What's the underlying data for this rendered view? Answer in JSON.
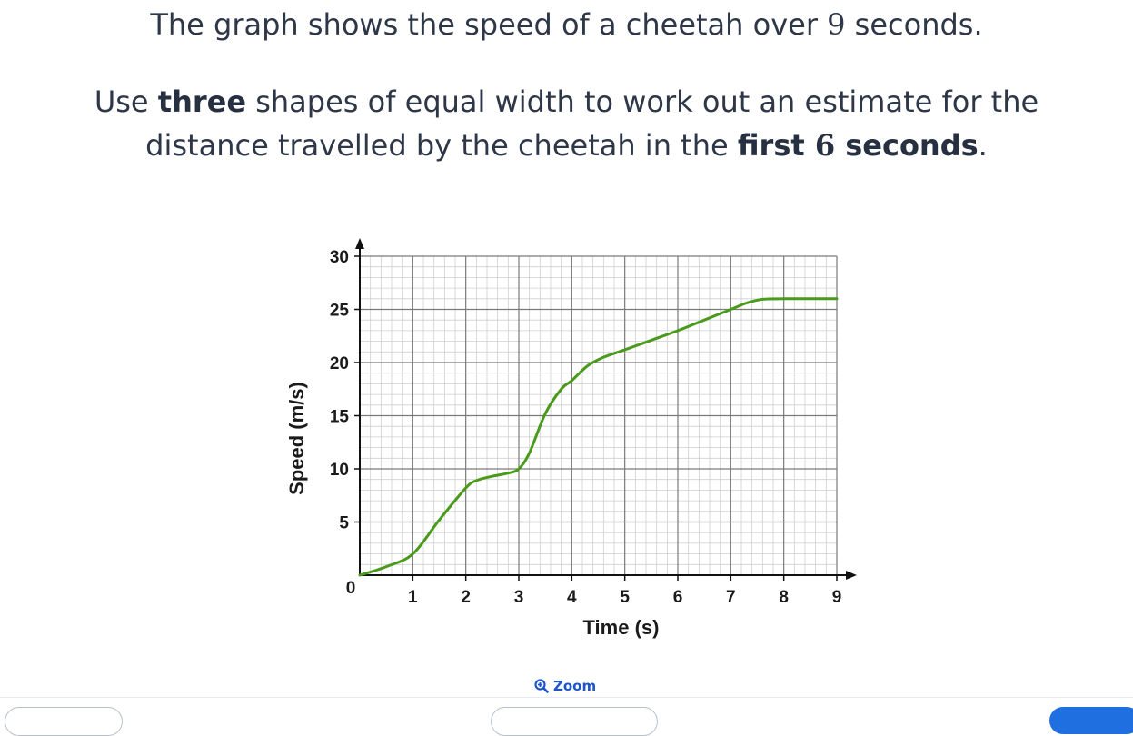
{
  "question": {
    "line1_before": "The graph shows the speed of a cheetah over ",
    "line1_num": "9",
    "line1_after": " seconds.",
    "line2_a": "Use ",
    "line2_bold1": "three",
    "line2_b": " shapes of equal width to work out an estimate for the",
    "line3_a": "distance travelled by the cheetah in the ",
    "line3_bold": "first ",
    "line3_num": "6",
    "line3_bold2": " seconds",
    "line3_end": "."
  },
  "zoom": {
    "label": "Zoom",
    "icon": "zoom-in-icon"
  },
  "chart_data": {
    "type": "line",
    "xlabel": "Time (s)",
    "ylabel": "Speed (m/s)",
    "xlim": [
      0,
      9
    ],
    "ylim": [
      0,
      30
    ],
    "x_ticks": [
      "0",
      "1",
      "2",
      "3",
      "4",
      "5",
      "6",
      "7",
      "8",
      "9"
    ],
    "y_ticks": [
      "5",
      "10",
      "15",
      "20",
      "25",
      "30"
    ],
    "grid": true,
    "line_color": "#4a9a1c",
    "series": [
      {
        "x": [
          0,
          0.5,
          1,
          1.5,
          2,
          2.2,
          2.5,
          2.8,
          3,
          3.2,
          3.5,
          3.8,
          4,
          4.3,
          4.6,
          5,
          5.5,
          6,
          6.5,
          7,
          7.3,
          7.6,
          8,
          8.5,
          9
        ],
        "y": [
          0,
          0.8,
          2,
          5.2,
          8.2,
          8.9,
          9.3,
          9.6,
          10,
          11.5,
          15.2,
          17.5,
          18.3,
          19.7,
          20.5,
          21.2,
          22.1,
          23,
          24,
          25,
          25.6,
          25.95,
          26,
          26,
          26
        ]
      }
    ]
  },
  "colors": {
    "accent": "#1e56c8",
    "button": "#1f6fe0"
  }
}
